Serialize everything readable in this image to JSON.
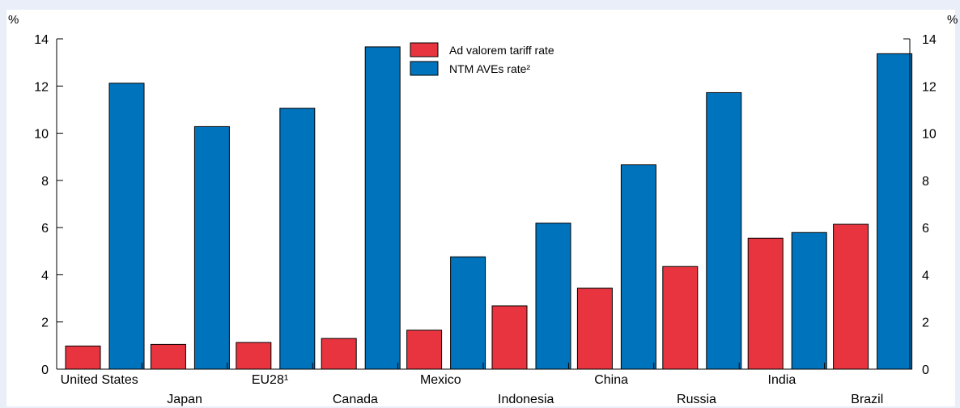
{
  "chart_data": {
    "type": "bar",
    "title": "",
    "xlabel": "",
    "ylabel": "%",
    "ylabel_right": "%",
    "ylim": [
      0,
      14
    ],
    "yticks": [
      0,
      2,
      4,
      6,
      8,
      10,
      12,
      14
    ],
    "grid": false,
    "legend": "top-center",
    "categories": [
      "United States",
      "Japan",
      "EU28¹",
      "Canada",
      "Mexico",
      "Indonesia",
      "China",
      "Russia",
      "India",
      "Brazil"
    ],
    "series": [
      {
        "name": "Ad valorem tariff rate",
        "color": "#e8343f",
        "values": [
          0.98,
          1.05,
          1.13,
          1.3,
          1.65,
          2.68,
          3.43,
          4.35,
          5.55,
          6.14
        ]
      },
      {
        "name": "NTM AVEs rate²",
        "color": "#0073bd",
        "values": [
          12.12,
          10.28,
          11.06,
          13.66,
          4.76,
          6.19,
          8.66,
          11.72,
          5.79,
          13.37
        ]
      }
    ]
  }
}
